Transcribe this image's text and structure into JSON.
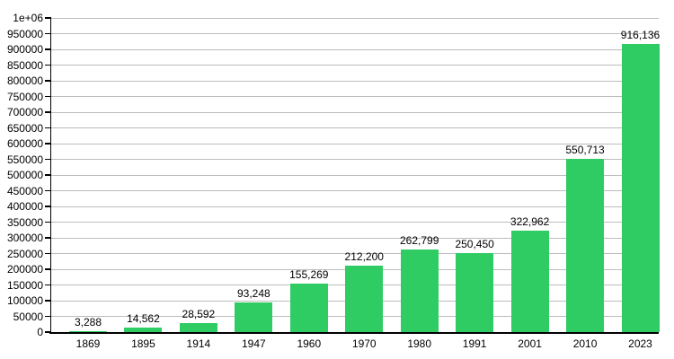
{
  "chart_data": {
    "type": "bar",
    "title": "",
    "xlabel": "",
    "ylabel": "",
    "categories": [
      "1869",
      "1895",
      "1914",
      "1947",
      "1960",
      "1970",
      "1980",
      "1991",
      "2001",
      "2010",
      "2023"
    ],
    "values": [
      3288,
      14562,
      28592,
      93248,
      155269,
      212200,
      262799,
      250450,
      322962,
      550713,
      916136
    ],
    "value_labels": [
      "3,288",
      "14,562",
      "28,592",
      "93,248",
      "155,269",
      "212,200",
      "262,799",
      "250,450",
      "322,962",
      "550,713",
      "916,136"
    ],
    "ylim": [
      0,
      1000000
    ],
    "ytick_step": 50000,
    "ytick_labels": [
      "0",
      "50000",
      "100000",
      "150000",
      "200000",
      "250000",
      "300000",
      "350000",
      "400000",
      "450000",
      "500000",
      "550000",
      "600000",
      "650000",
      "700000",
      "750000",
      "800000",
      "850000",
      "900000",
      "950000",
      "1e+06"
    ],
    "grid": true,
    "legend": "none",
    "colors": {
      "bar": "#2ecc63",
      "grid": "#bcbcbc",
      "axis": "#000000",
      "text": "#000000",
      "background": "#ffffff"
    }
  }
}
